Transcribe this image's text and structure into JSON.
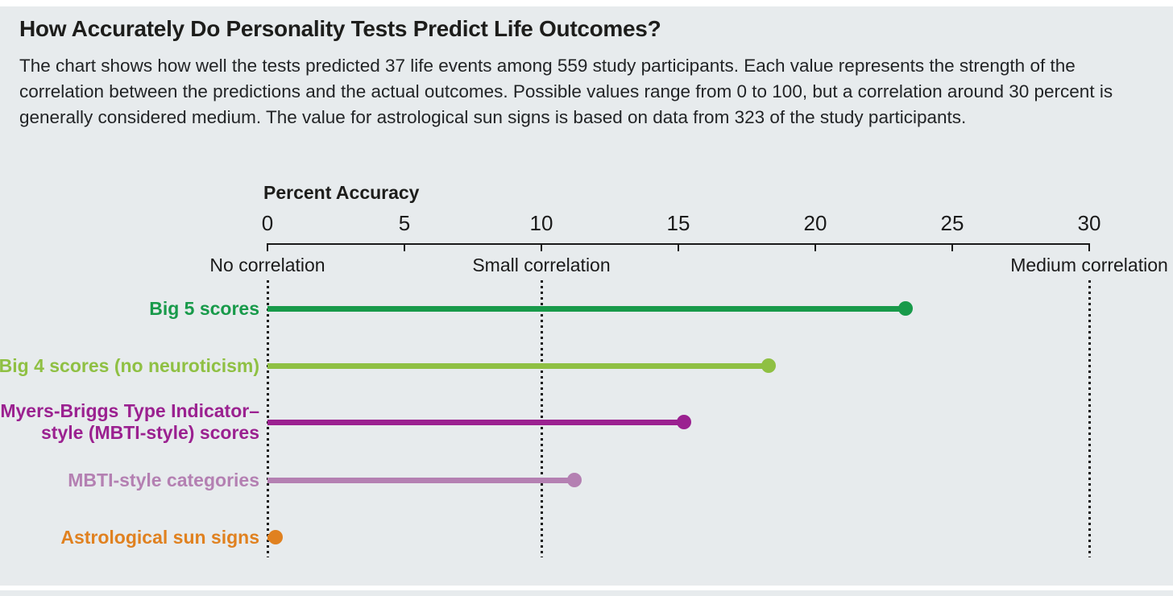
{
  "header": {
    "title": "How Accurately Do Personality Tests Predict Life Outcomes?",
    "subtitle": "The chart shows how well the tests predicted 37 life events among 559 study participants. Each value represents the strength of the correlation between the predictions and the actual outcomes. Possible values range from 0 to 100, but a correlation around 30 percent is generally considered medium. The value for astrological sun signs is based on data from 323 of the study participants."
  },
  "chart_data": {
    "type": "bar",
    "subtype": "horizontal-lollipop",
    "title": "How Accurately Do Personality Tests Predict Life Outcomes?",
    "axis_title": "Percent Accuracy",
    "xlabel": "Percent Accuracy",
    "ylabel": "",
    "xlim": [
      0,
      30
    ],
    "ticks": [
      0,
      5,
      10,
      15,
      20,
      25,
      30
    ],
    "grid": false,
    "reference_lines": [
      {
        "value": 0,
        "label": "No correlation"
      },
      {
        "value": 10,
        "label": "Small correlation"
      },
      {
        "value": 30,
        "label": "Medium correlation"
      }
    ],
    "series": [
      {
        "label": "Big 5 scores",
        "label_lines": [
          "Big 5 scores"
        ],
        "value": 23.3,
        "color": "#189a4a"
      },
      {
        "label": "Big 4 scores (no neuroticism)",
        "label_lines": [
          "Big 4 scores (no neuroticism)"
        ],
        "value": 18.3,
        "color": "#8fc043"
      },
      {
        "label": "Myers-Briggs Type Indicator–style (MBTI-style) scores",
        "label_lines": [
          "Myers-Briggs Type Indicator–",
          "style (MBTI-style) scores"
        ],
        "value": 15.2,
        "color": "#9b2190"
      },
      {
        "label": "MBTI-style categories",
        "label_lines": [
          "MBTI-style categories"
        ],
        "value": 11.2,
        "color": "#b480b2"
      },
      {
        "label": "Astrological sun signs",
        "label_lines": [
          "Astrological sun signs"
        ],
        "value": 0.3,
        "color": "#e08120"
      }
    ]
  },
  "colors": {
    "background": "#e7ebed",
    "text": "#1d1d1b",
    "axis": "#1a1a1a"
  }
}
